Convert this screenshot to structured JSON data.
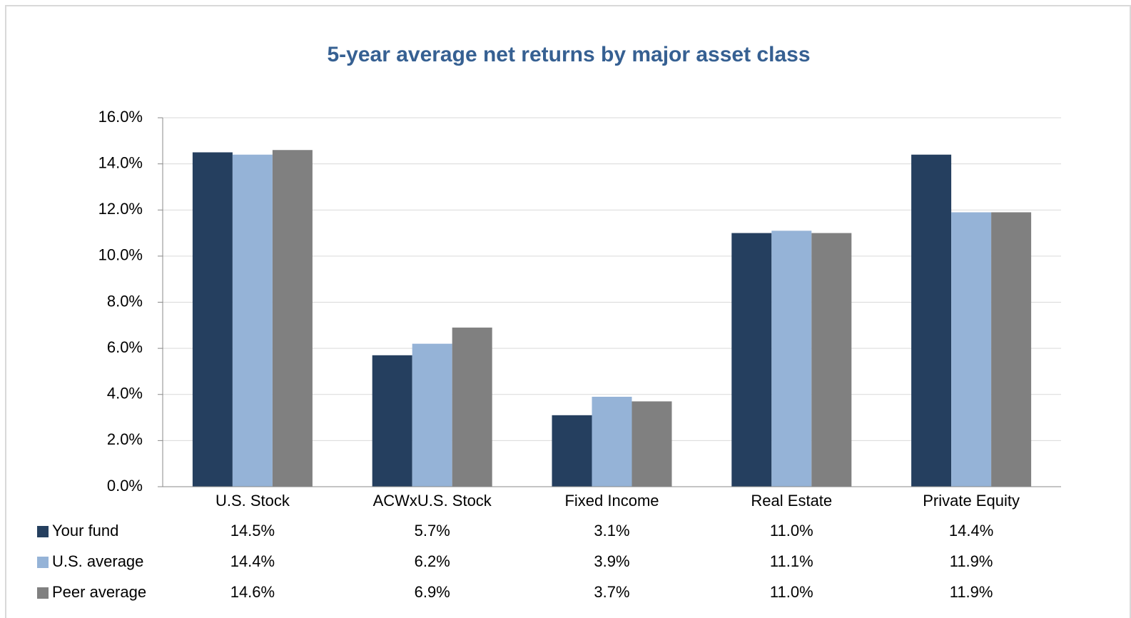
{
  "chart_data": {
    "type": "bar",
    "title": "5-year average net returns by major asset class",
    "categories": [
      "U.S. Stock",
      "ACWxU.S. Stock",
      "Fixed Income",
      "Real Estate",
      "Private Equity"
    ],
    "series": [
      {
        "name": "Your fund",
        "color": "#253f5f",
        "values": [
          14.5,
          5.7,
          3.1,
          11.0,
          14.4
        ],
        "value_labels": [
          "14.5%",
          "5.7%",
          "3.1%",
          "11.0%",
          "14.4%"
        ]
      },
      {
        "name": "U.S. average",
        "color": "#95b3d7",
        "values": [
          14.4,
          6.2,
          3.9,
          11.1,
          11.9
        ],
        "value_labels": [
          "14.4%",
          "6.2%",
          "3.9%",
          "11.1%",
          "11.9%"
        ]
      },
      {
        "name": "Peer average",
        "color": "#808080",
        "values": [
          14.6,
          6.9,
          3.7,
          11.0,
          11.9
        ],
        "value_labels": [
          "14.6%",
          "6.9%",
          "3.7%",
          "11.0%",
          "11.9%"
        ]
      }
    ],
    "ylim": [
      0,
      16
    ],
    "yticks": [
      {
        "value": 0,
        "label": "0.0%"
      },
      {
        "value": 2,
        "label": "2.0%"
      },
      {
        "value": 4,
        "label": "4.0%"
      },
      {
        "value": 6,
        "label": "6.0%"
      },
      {
        "value": 8,
        "label": "8.0%"
      },
      {
        "value": 10,
        "label": "10.0%"
      },
      {
        "value": 12,
        "label": "12.0%"
      },
      {
        "value": 14,
        "label": "14.0%"
      },
      {
        "value": 16,
        "label": "16.0%"
      }
    ],
    "grid": true
  }
}
